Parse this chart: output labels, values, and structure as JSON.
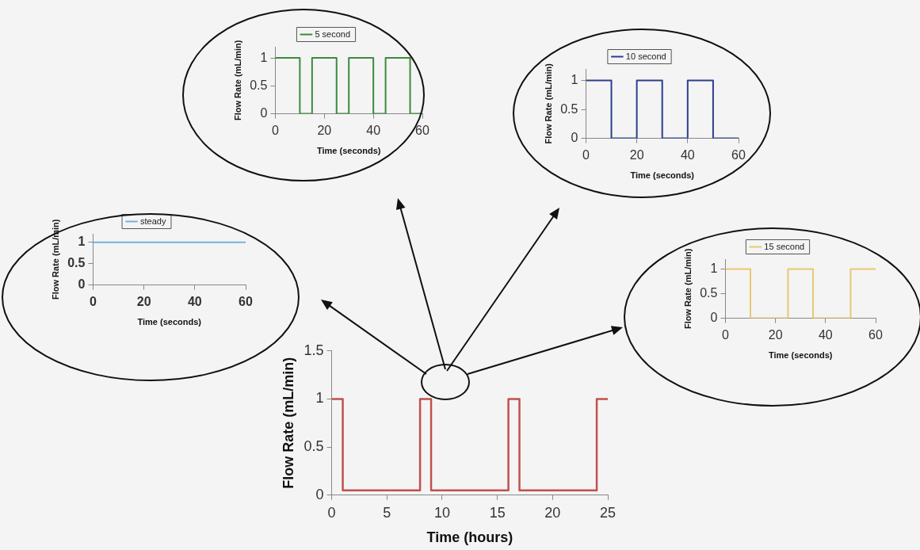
{
  "chart_data": [
    {
      "type": "step",
      "xlabel": "Time (seconds)",
      "ylabel": "Flow Rate (mL/min)",
      "legend": "top",
      "grid": false,
      "xlim": [
        0,
        60
      ],
      "xticks": [
        0,
        20,
        40,
        60
      ],
      "ylim": [
        0,
        1.2
      ],
      "yticks": [
        0,
        0.5,
        1
      ],
      "series": [
        {
          "name": "5 second",
          "color": "#3c8a3c",
          "x": [
            0,
            10,
            15,
            25,
            30,
            40,
            45,
            55,
            60
          ],
          "values": [
            1,
            0,
            1,
            0,
            1,
            0,
            1,
            0,
            0
          ]
        }
      ]
    },
    {
      "type": "step",
      "xlabel": "Time (seconds)",
      "ylabel": "Flow Rate (mL/min)",
      "legend": "top",
      "grid": false,
      "xlim": [
        0,
        60
      ],
      "xticks": [
        0,
        20,
        40,
        60
      ],
      "ylim": [
        0,
        1.2
      ],
      "yticks": [
        0,
        0.5,
        1
      ],
      "series": [
        {
          "name": "10 second",
          "color": "#2b3f8c",
          "x": [
            0,
            10,
            20,
            30,
            40,
            50,
            60
          ],
          "values": [
            1,
            0,
            1,
            0,
            1,
            0,
            0
          ]
        }
      ]
    },
    {
      "type": "step",
      "xlabel": "Time (seconds)",
      "ylabel": "Flow Rate (mL/min)",
      "legend": "top",
      "grid": false,
      "xlim": [
        0,
        60
      ],
      "xticks": [
        0,
        20,
        40,
        60
      ],
      "ylim": [
        0,
        1.2
      ],
      "yticks": [
        0,
        0.5,
        1
      ],
      "series": [
        {
          "name": "steady",
          "color": "#74b3e0",
          "x": [
            0,
            60
          ],
          "values": [
            1,
            1
          ]
        }
      ]
    },
    {
      "type": "step",
      "xlabel": "Time (seconds)",
      "ylabel": "Flow Rate (mL/min)",
      "legend": "top",
      "grid": false,
      "xlim": [
        0,
        60
      ],
      "xticks": [
        0,
        20,
        40,
        60
      ],
      "ylim": [
        0,
        1.2
      ],
      "yticks": [
        0,
        0.5,
        1
      ],
      "series": [
        {
          "name": "15 second",
          "color": "#e8c870",
          "x": [
            0,
            10,
            25,
            35,
            50,
            60
          ],
          "values": [
            1,
            0,
            1,
            0,
            1,
            1
          ]
        }
      ]
    },
    {
      "type": "step",
      "xlabel": "Time (hours)",
      "ylabel": "Flow Rate (mL/min)",
      "legend": false,
      "grid": false,
      "xlim": [
        0,
        25
      ],
      "xticks": [
        0,
        5,
        10,
        15,
        20,
        25
      ],
      "ylim": [
        0,
        1.5
      ],
      "yticks": [
        0,
        0.5,
        1,
        1.5
      ],
      "series": [
        {
          "color": "#c0504d",
          "x": [
            0,
            1,
            8,
            9,
            16,
            17,
            24,
            25
          ],
          "values": [
            1,
            0.05,
            1,
            0.05,
            1,
            0.05,
            1,
            1
          ]
        }
      ]
    }
  ]
}
